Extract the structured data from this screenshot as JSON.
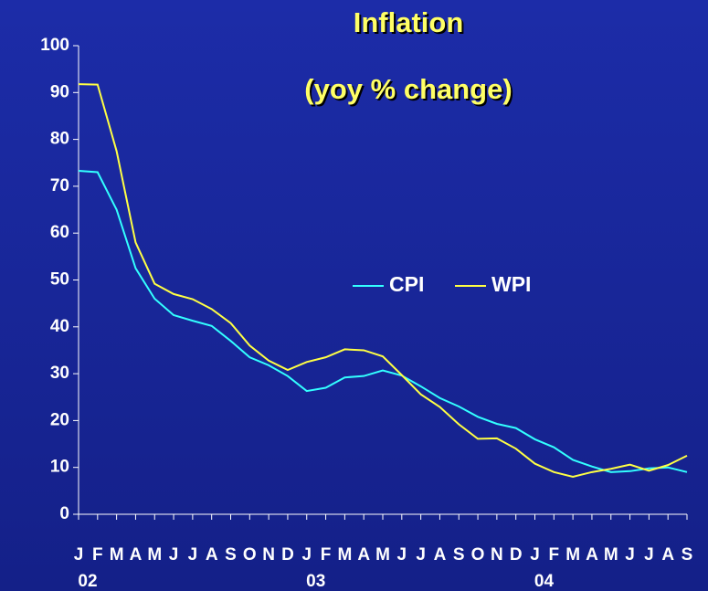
{
  "chart_data": {
    "type": "line",
    "title": "Inflation",
    "subtitle": "(yoy % change)",
    "categories": [
      "J",
      "F",
      "M",
      "A",
      "M",
      "J",
      "J",
      "A",
      "S",
      "O",
      "N",
      "D",
      "J",
      "F",
      "M",
      "A",
      "M",
      "J",
      "J",
      "A",
      "S",
      "O",
      "N",
      "D",
      "J",
      "F",
      "M",
      "A",
      "M",
      "J",
      "J",
      "A",
      "S"
    ],
    "groups": [
      {
        "label": "02",
        "count": 12
      },
      {
        "label": "03",
        "count": 12
      },
      {
        "label": "04",
        "count": 9
      }
    ],
    "series": [
      {
        "name": "CPI",
        "color": "#33ffff",
        "values": [
          73.3,
          73,
          65,
          52.5,
          46,
          42.5,
          41.3,
          40.2,
          37,
          33.5,
          31.8,
          29.5,
          26.3,
          27,
          29.2,
          29.5,
          30.7,
          29.6,
          27.3,
          24.8,
          23,
          20.8,
          19.3,
          18.4,
          16,
          14.3,
          11.6,
          10.2,
          9,
          9.2,
          9.8,
          10,
          9
        ]
      },
      {
        "name": "WPI",
        "color": "#ffff44",
        "values": [
          91.8,
          91.7,
          77.5,
          58,
          49.2,
          47,
          45.9,
          43.8,
          40.8,
          36,
          32.8,
          30.8,
          32.5,
          33.5,
          35.2,
          35,
          33.7,
          29.7,
          25.6,
          22.9,
          19.2,
          16.1,
          16.2,
          14,
          10.8,
          9,
          8,
          9,
          9.7,
          10.6,
          9.3,
          10.5,
          12.5
        ]
      }
    ],
    "ylim": [
      0,
      100
    ],
    "yticks": [
      0,
      10,
      20,
      30,
      40,
      50,
      60,
      70,
      80,
      90,
      100
    ],
    "grid": false,
    "legend": "center"
  }
}
